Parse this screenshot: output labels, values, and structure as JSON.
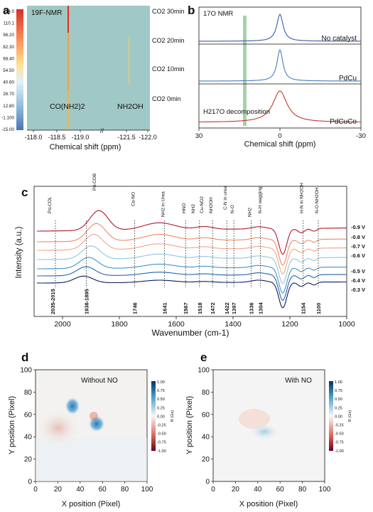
{
  "panel_labels": [
    "a",
    "b",
    "c",
    "d",
    "e"
  ],
  "colors": {
    "series_neg09": "#b2182b",
    "series_neg08": "#ef8a62",
    "series_neg07": "#f4a582",
    "series_neg06": "#92c5de",
    "series_neg05": "#4393c3",
    "series_neg04": "#2166ac",
    "series_neg03": "#0b1f5e",
    "green_label": "#2e7d32",
    "nmr_top": "#3b5ba9",
    "nmr_mid": "#4a7ac8",
    "nmr_bot": "#c0392b"
  },
  "chart_data": [
    {
      "panel": "a",
      "type": "heatmap",
      "title": "19F-NMR",
      "xlabel": "Chemical shift (ppm)",
      "x_ticks": [
        "-118.0",
        "-118.5",
        "-119.0",
        "-121.5",
        "-122.0"
      ],
      "colorbar_ticks": [
        "124.0",
        "110.1",
        "96.20",
        "82.30",
        "68.40",
        "54.50",
        "40.60",
        "26.70",
        "12.80",
        "-1.100",
        "-15.00"
      ],
      "rows": [
        "CO2 30min",
        "CO2 20min",
        "CO2 10min",
        "CO2 0min"
      ],
      "annotations": [
        "CO(NH2)2",
        "NH2OH"
      ],
      "peaks_ppm": [
        -118.75,
        -121.35
      ]
    },
    {
      "panel": "b",
      "type": "line",
      "title": "17O NMR",
      "xlabel": "Chemical shift (ppm)",
      "x_ticks": [
        "30",
        "0",
        "-30"
      ],
      "xlim": [
        30,
        -30
      ],
      "series": [
        {
          "name": "No catalyst",
          "peak_ppm": 0
        },
        {
          "name": "PdCu",
          "peak_ppm": 0
        },
        {
          "name": "PdCuCo",
          "peak_ppm": 0
        }
      ],
      "annotation": "H217O decomposition",
      "highlight_ppm": 14
    },
    {
      "panel": "c",
      "type": "line",
      "xlabel": "Wavenumber (cm-1)",
      "ylabel": "Intensity (a.u.)",
      "xlim": [
        2100,
        1000
      ],
      "x_ticks": [
        "2000",
        "1800",
        "1600",
        "1400",
        "1200",
        "1000"
      ],
      "series_labels": [
        "-0.9 V",
        "-0.8 V",
        "-0.7 V",
        "-0.6 V",
        "-0.5 V",
        "-0.4 V",
        "-0.3 V"
      ],
      "band_annotations": [
        "Pd-COL",
        "Pd-COB",
        "Co-NO",
        "NH2 in Urea",
        "HNO",
        "NH2",
        "Cu-NO2",
        "NH2OH",
        "C-N in urea",
        "N-O",
        "NH2",
        "N-H wagging",
        "H-N in NH2OH",
        "N-O NH2OH"
      ],
      "bottom_labels": [
        "2035-2015",
        "1938-1895",
        "1746",
        "1641",
        "1567",
        "1518",
        "1472",
        "1422",
        "1397",
        "1336",
        "1304",
        "1154",
        "1100"
      ],
      "bottom_labels_green": [
        "1746",
        "1567"
      ]
    },
    {
      "panel": "d",
      "type": "heatmap",
      "title": "Without NO",
      "xlabel": "X position (Pixel)",
      "ylabel": "Y position (Pixel)",
      "xlim": [
        0,
        100
      ],
      "ylim": [
        0,
        100
      ],
      "ticks": [
        "0",
        "20",
        "40",
        "60",
        "80",
        "100"
      ],
      "colorbar_label": "B (Gs)",
      "colorbar_ticks": [
        "1.00",
        "0.75",
        "0.50",
        "0.25",
        "0.00",
        "-0.25",
        "-0.50",
        "-0.75",
        "-1.00"
      ]
    },
    {
      "panel": "e",
      "type": "heatmap",
      "title": "With NO",
      "xlabel": "X position (Pixel)",
      "ylabel": "Y position (Pixel)",
      "xlim": [
        0,
        100
      ],
      "ylim": [
        0,
        100
      ],
      "ticks": [
        "0",
        "20",
        "40",
        "60",
        "80",
        "100"
      ],
      "colorbar_label": "B (Gs)",
      "colorbar_ticks": [
        "1.00",
        "0.75",
        "0.50",
        "0.25",
        "0.00",
        "-0.25",
        "-0.50",
        "-0.75",
        "-1.00"
      ]
    }
  ]
}
